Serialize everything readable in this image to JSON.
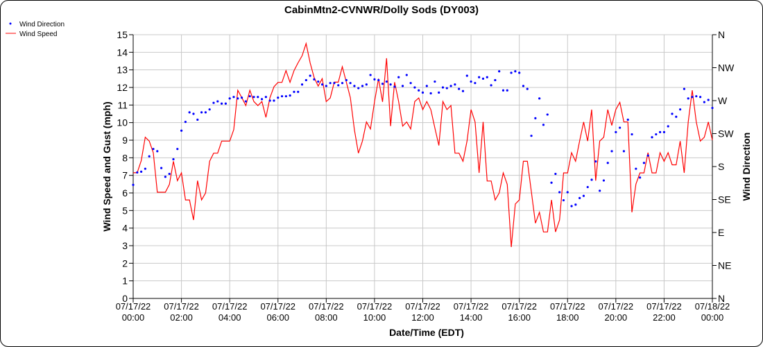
{
  "chart_data": {
    "type": "line",
    "title": "CabinMtn2-CVNWR/Dolly Sods (DY003)",
    "xlabel": "Date/Time (EDT)",
    "ylabel": "Wind Speed and Gust (mph)",
    "y2label": "Wind Direction",
    "ylim": [
      0,
      15
    ],
    "y2lim": [
      0,
      360
    ],
    "grid": true,
    "legend_position": "top-left",
    "interval_minutes": 10,
    "x_tick_labels": [
      [
        "07/17/22",
        "00:00"
      ],
      [
        "07/17/22",
        "02:00"
      ],
      [
        "07/17/22",
        "04:00"
      ],
      [
        "07/17/22",
        "06:00"
      ],
      [
        "07/17/22",
        "08:00"
      ],
      [
        "07/17/22",
        "10:00"
      ],
      [
        "07/17/22",
        "12:00"
      ],
      [
        "07/17/22",
        "14:00"
      ],
      [
        "07/17/22",
        "16:00"
      ],
      [
        "07/17/22",
        "18:00"
      ],
      [
        "07/17/22",
        "20:00"
      ],
      [
        "07/17/22",
        "22:00"
      ],
      [
        "07/18/22",
        "00:00"
      ]
    ],
    "y_tick_labels": [
      "0",
      "1",
      "2",
      "3",
      "4",
      "5",
      "6",
      "7",
      "8",
      "9",
      "10",
      "11",
      "12",
      "13",
      "14",
      "15"
    ],
    "y2_tick_labels": [
      "N",
      "NE",
      "E",
      "SE",
      "S",
      "SW",
      "W",
      "NW",
      "N"
    ],
    "series": [
      {
        "name": "Wind Direction",
        "kind": "scatter",
        "axis": "right",
        "color": "#0000ff",
        "values": [
          155,
          172,
          173,
          177,
          194,
          204,
          201,
          178,
          166,
          170,
          190,
          204,
          229,
          241,
          254,
          252,
          244,
          254,
          254,
          258,
          267,
          269,
          266,
          266,
          273,
          275,
          273,
          274,
          269,
          276,
          275,
          275,
          272,
          275,
          270,
          270,
          274,
          276,
          276,
          277,
          282,
          282,
          292,
          298,
          304,
          299,
          296,
          292,
          290,
          294,
          294,
          291,
          294,
          298,
          294,
          290,
          287,
          290,
          292,
          305,
          299,
          298,
          293,
          296,
          292,
          289,
          302,
          290,
          305,
          294,
          288,
          284,
          281,
          290,
          280,
          296,
          281,
          288,
          287,
          290,
          292,
          286,
          283,
          304,
          296,
          294,
          302,
          300,
          302,
          291,
          298,
          310,
          284,
          284,
          308,
          310,
          308,
          290,
          286,
          222,
          246,
          273,
          237,
          251,
          158,
          170,
          145,
          134,
          145,
          126,
          128,
          137,
          140,
          152,
          162,
          187,
          147,
          161,
          185,
          201,
          227,
          233,
          201,
          244,
          224,
          177,
          165,
          185,
          195,
          220,
          224,
          227,
          227,
          235,
          252,
          248,
          258,
          286,
          273,
          275,
          276,
          275,
          268,
          271,
          260
        ]
      },
      {
        "name": "Wind Speed",
        "kind": "line",
        "axis": "left",
        "color": "#ff0000",
        "values": [
          7.15,
          7.15,
          7.83,
          9.17,
          8.95,
          8.29,
          6.04,
          6.04,
          6.04,
          6.48,
          7.8,
          6.7,
          7.14,
          5.6,
          5.6,
          4.46,
          6.7,
          5.6,
          6.0,
          7.8,
          8.26,
          8.26,
          8.95,
          8.95,
          8.95,
          9.6,
          11.84,
          11.42,
          10.97,
          11.84,
          11.2,
          10.97,
          11.2,
          10.3,
          11.42,
          12.04,
          12.29,
          12.29,
          12.96,
          12.29,
          12.96,
          13.4,
          13.8,
          14.5,
          13.4,
          12.56,
          12.08,
          12.5,
          11.2,
          11.4,
          12.3,
          12.3,
          13.18,
          12.3,
          11.42,
          9.6,
          8.26,
          8.95,
          10.04,
          9.64,
          11.18,
          12.5,
          11.18,
          13.66,
          9.8,
          12.3,
          11.2,
          9.8,
          10.04,
          9.64,
          11.2,
          11.4,
          10.74,
          11.2,
          10.74,
          9.7,
          8.7,
          11.2,
          10.74,
          10.97,
          8.26,
          8.26,
          7.8,
          8.95,
          10.74,
          10.04,
          7.14,
          10.04,
          6.68,
          6.68,
          5.6,
          6.0,
          7.14,
          6.48,
          2.92,
          5.37,
          5.6,
          7.8,
          7.8,
          6.05,
          4.28,
          4.9,
          3.78,
          3.78,
          5.6,
          3.78,
          4.46,
          7.14,
          7.14,
          8.29,
          7.8,
          8.95,
          10.04,
          8.95,
          10.74,
          6.7,
          8.95,
          9.17,
          10.74,
          9.84,
          10.74,
          11.15,
          10.04,
          10.04,
          4.9,
          6.5,
          7.14,
          7.14,
          8.29,
          7.14,
          7.14,
          8.29,
          7.8,
          8.29,
          7.6,
          7.6,
          8.95,
          7.14,
          10.04,
          11.84,
          10.04,
          8.95,
          9.17,
          10.04,
          9.0
        ]
      }
    ]
  }
}
